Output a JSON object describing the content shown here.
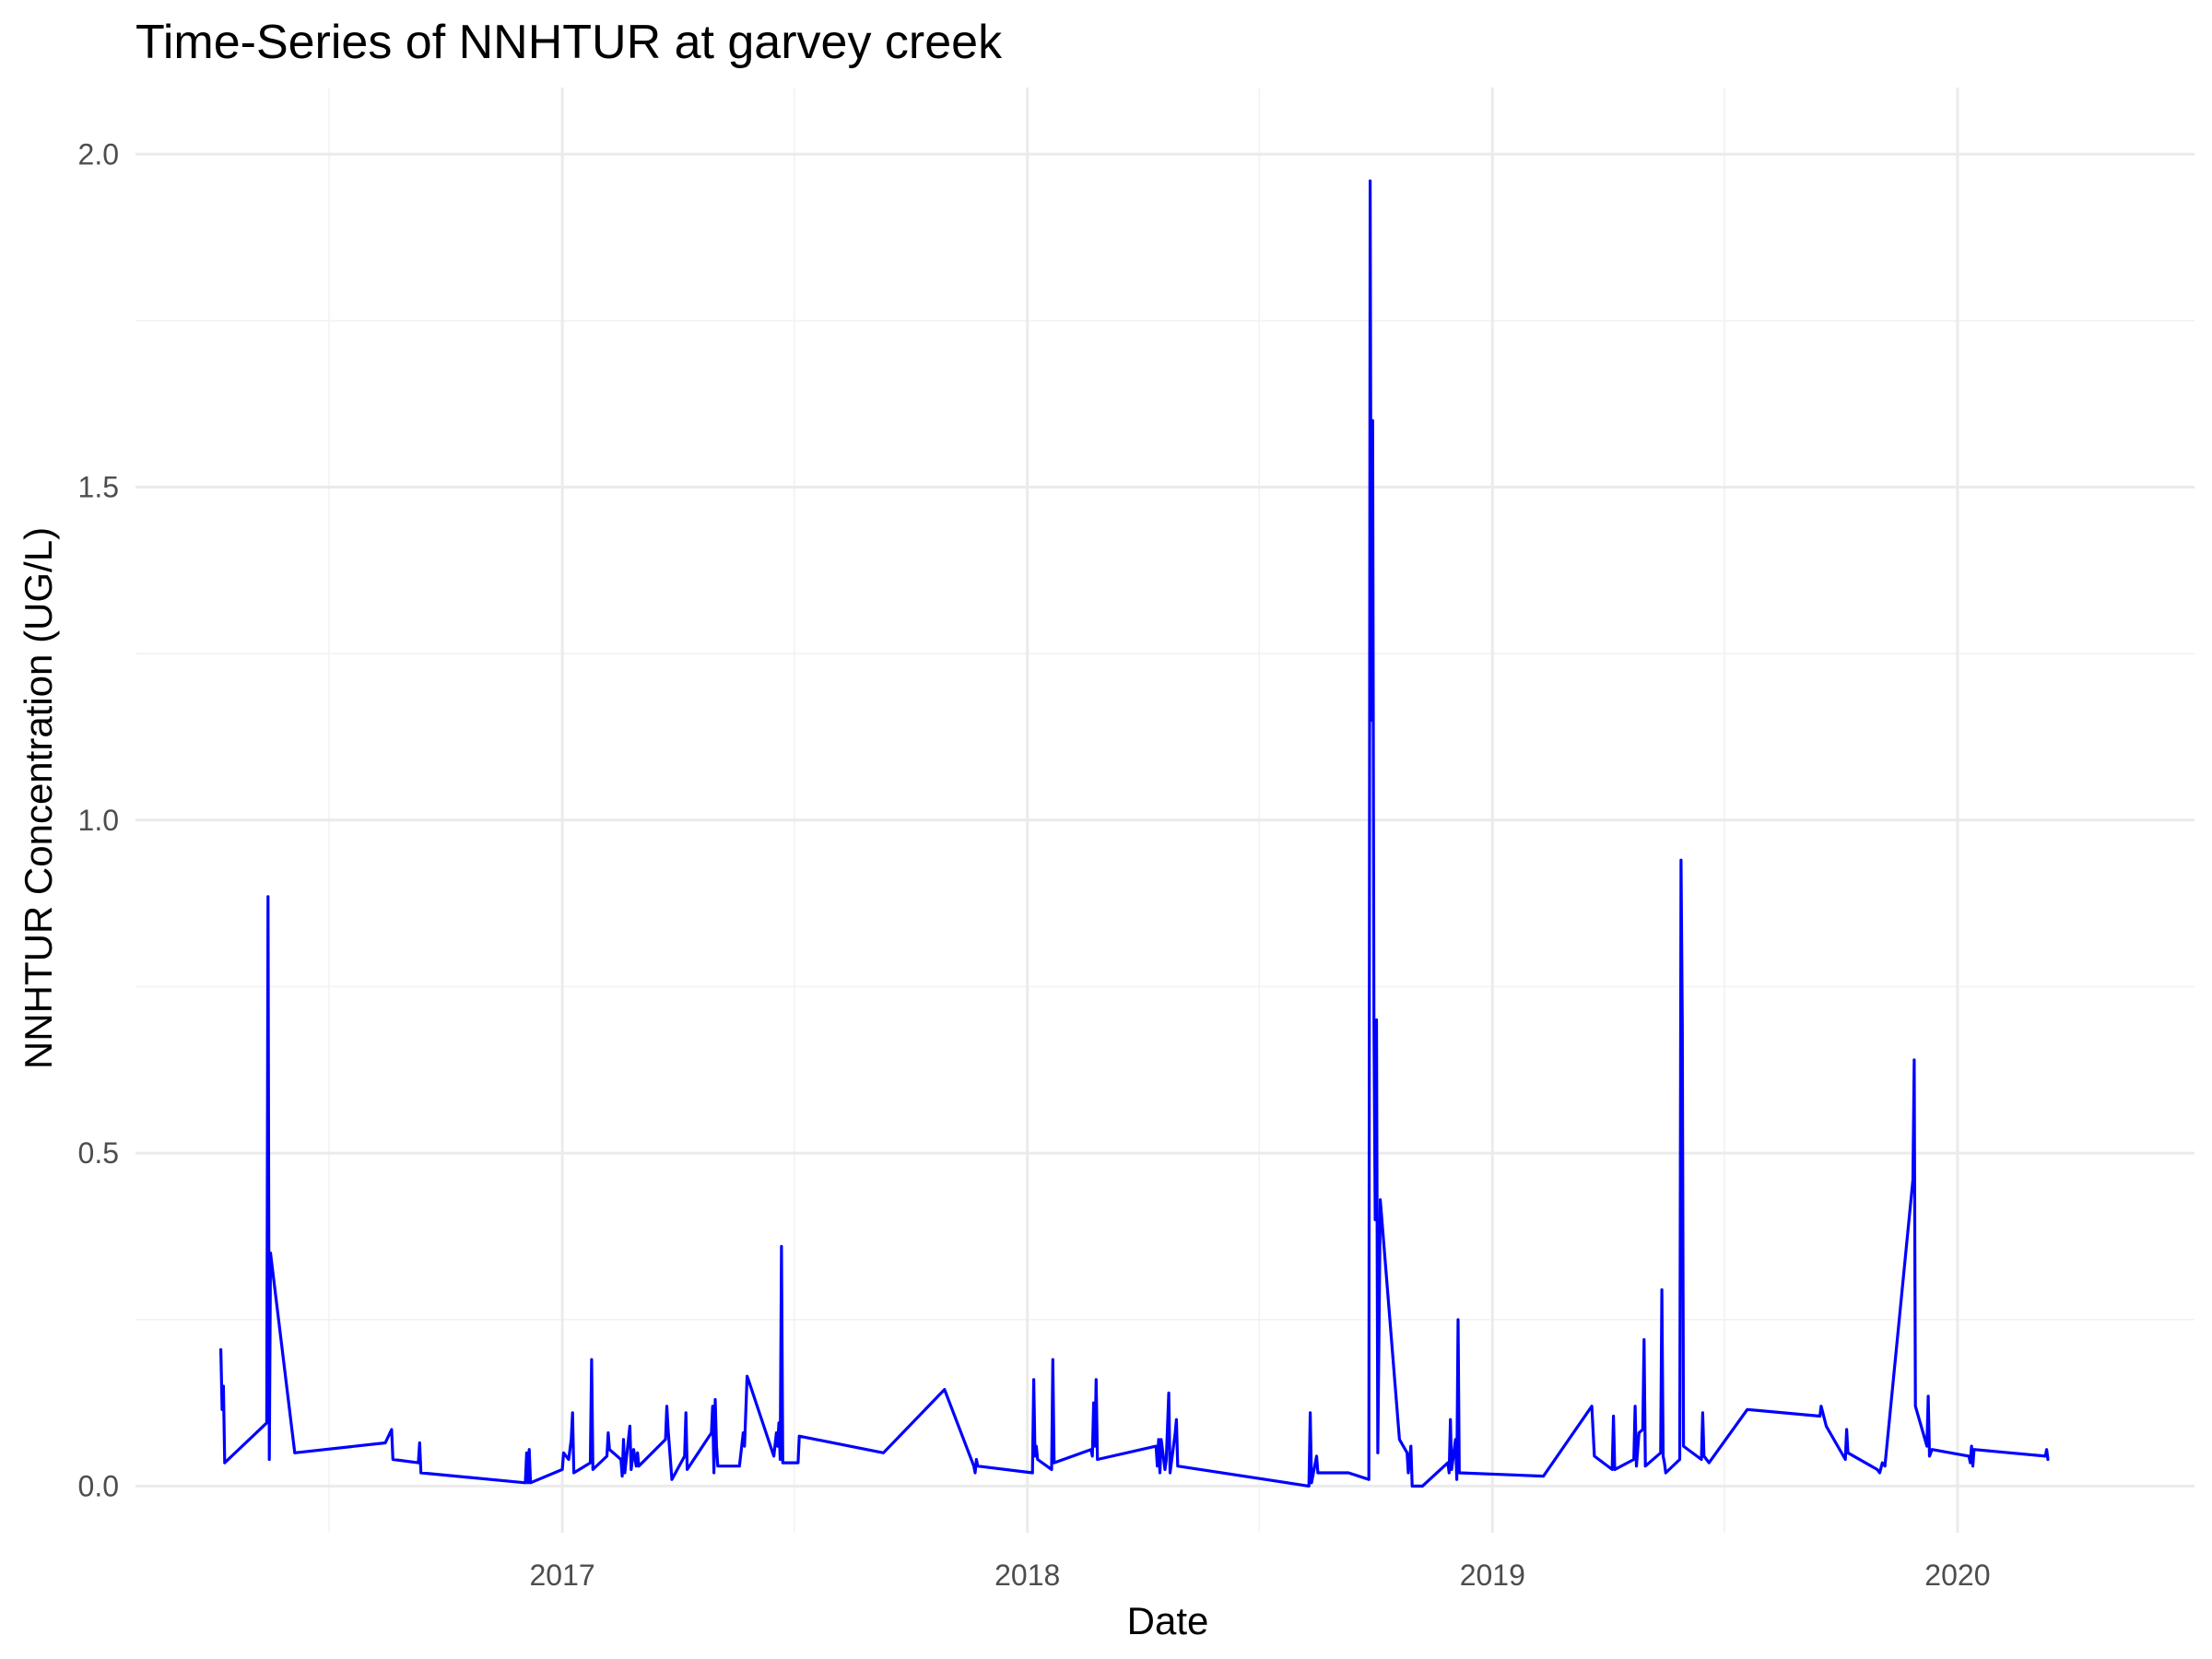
{
  "chart_data": {
    "type": "line",
    "title": "Time-Series of NNHTUR at garvey creek",
    "xlabel": "Date",
    "ylabel": "NNHTUR Concentration (UG/L)",
    "xlim": [
      "2016-02-01",
      "2020-07-05"
    ],
    "ylim": [
      -0.07,
      2.1
    ],
    "x_ticks": [
      {
        "date": "2017-01-01",
        "label": "2017"
      },
      {
        "date": "2018-01-01",
        "label": "2018"
      },
      {
        "date": "2019-01-01",
        "label": "2019"
      },
      {
        "date": "2020-01-01",
        "label": "2020"
      }
    ],
    "x_minor_ticks": [
      "2016-07-02",
      "2017-07-02",
      "2018-07-02",
      "2019-07-02"
    ],
    "y_ticks": [
      {
        "value": 0.0,
        "label": "0.0"
      },
      {
        "value": 0.5,
        "label": "0.5"
      },
      {
        "value": 1.0,
        "label": "1.0"
      },
      {
        "value": 1.5,
        "label": "1.5"
      },
      {
        "value": 2.0,
        "label": "2.0"
      }
    ],
    "y_minor_ticks": [
      0.25,
      0.75,
      1.25,
      1.75
    ],
    "grid": true,
    "legend": "none",
    "series": [
      {
        "color": "#0000ff",
        "points": [
          [
            "2016-04-08",
            0.205
          ],
          [
            "2016-04-09",
            0.115
          ],
          [
            "2016-04-10",
            0.15
          ],
          [
            "2016-04-11",
            0.035
          ],
          [
            "2016-05-14",
            0.095
          ],
          [
            "2016-05-15",
            0.885
          ],
          [
            "2016-05-16",
            0.04
          ],
          [
            "2016-05-17",
            0.35
          ],
          [
            "2016-06-05",
            0.05
          ],
          [
            "2016-08-15",
            0.065
          ],
          [
            "2016-08-20",
            0.085
          ],
          [
            "2016-08-21",
            0.04
          ],
          [
            "2016-09-10",
            0.035
          ],
          [
            "2016-09-11",
            0.065
          ],
          [
            "2016-09-12",
            0.02
          ],
          [
            "2016-12-03",
            0.005
          ],
          [
            "2016-12-04",
            0.05
          ],
          [
            "2016-12-05",
            0.005
          ],
          [
            "2016-12-06",
            0.055
          ],
          [
            "2016-12-07",
            0.005
          ],
          [
            "2017-01-01",
            0.025
          ],
          [
            "2017-01-02",
            0.05
          ],
          [
            "2017-01-06",
            0.04
          ],
          [
            "2017-01-08",
            0.07
          ],
          [
            "2017-01-09",
            0.11
          ],
          [
            "2017-01-10",
            0.02
          ],
          [
            "2017-01-23",
            0.035
          ],
          [
            "2017-01-24",
            0.19
          ],
          [
            "2017-01-25",
            0.025
          ],
          [
            "2017-02-05",
            0.045
          ],
          [
            "2017-02-06",
            0.08
          ],
          [
            "2017-02-07",
            0.055
          ],
          [
            "2017-02-16",
            0.04
          ],
          [
            "2017-02-17",
            0.015
          ],
          [
            "2017-02-18",
            0.07
          ],
          [
            "2017-02-19",
            0.02
          ],
          [
            "2017-02-23",
            0.09
          ],
          [
            "2017-02-24",
            0.025
          ],
          [
            "2017-02-26",
            0.055
          ],
          [
            "2017-02-28",
            0.03
          ],
          [
            "2017-03-01",
            0.05
          ],
          [
            "2017-03-02",
            0.03
          ],
          [
            "2017-03-23",
            0.07
          ],
          [
            "2017-03-24",
            0.12
          ],
          [
            "2017-03-25",
            0.085
          ],
          [
            "2017-03-28",
            0.01
          ],
          [
            "2017-04-07",
            0.045
          ],
          [
            "2017-04-08",
            0.11
          ],
          [
            "2017-04-09",
            0.025
          ],
          [
            "2017-04-28",
            0.08
          ],
          [
            "2017-04-29",
            0.12
          ],
          [
            "2017-04-30",
            0.02
          ],
          [
            "2017-05-01",
            0.13
          ],
          [
            "2017-05-02",
            0.06
          ],
          [
            "2017-05-03",
            0.03
          ],
          [
            "2017-05-20",
            0.03
          ],
          [
            "2017-05-23",
            0.08
          ],
          [
            "2017-05-24",
            0.06
          ],
          [
            "2017-05-26",
            0.165
          ],
          [
            "2017-05-27",
            0.16
          ],
          [
            "2017-06-16",
            0.045
          ],
          [
            "2017-06-18",
            0.08
          ],
          [
            "2017-06-19",
            0.06
          ],
          [
            "2017-06-20",
            0.095
          ],
          [
            "2017-06-21",
            0.04
          ],
          [
            "2017-06-22",
            0.36
          ],
          [
            "2017-06-23",
            0.035
          ],
          [
            "2017-07-05",
            0.035
          ],
          [
            "2017-07-06",
            0.075
          ],
          [
            "2017-09-10",
            0.05
          ],
          [
            "2017-10-28",
            0.145
          ],
          [
            "2017-11-20",
            0.03
          ],
          [
            "2017-11-21",
            0.02
          ],
          [
            "2017-11-22",
            0.04
          ],
          [
            "2017-11-23",
            0.03
          ],
          [
            "2018-01-05",
            0.02
          ],
          [
            "2018-01-06",
            0.16
          ],
          [
            "2018-01-07",
            0.045
          ],
          [
            "2018-01-08",
            0.06
          ],
          [
            "2018-01-09",
            0.04
          ],
          [
            "2018-01-20",
            0.025
          ],
          [
            "2018-01-21",
            0.19
          ],
          [
            "2018-01-22",
            0.035
          ],
          [
            "2018-02-20",
            0.055
          ],
          [
            "2018-02-21",
            0.045
          ],
          [
            "2018-02-22",
            0.125
          ],
          [
            "2018-02-23",
            0.06
          ],
          [
            "2018-02-24",
            0.16
          ],
          [
            "2018-02-25",
            0.04
          ],
          [
            "2018-04-12",
            0.06
          ],
          [
            "2018-04-13",
            0.03
          ],
          [
            "2018-04-14",
            0.07
          ],
          [
            "2018-04-15",
            0.02
          ],
          [
            "2018-04-16",
            0.07
          ],
          [
            "2018-04-19",
            0.025
          ],
          [
            "2018-04-20",
            0.04
          ],
          [
            "2018-04-22",
            0.14
          ],
          [
            "2018-04-23",
            0.02
          ],
          [
            "2018-04-27",
            0.08
          ],
          [
            "2018-04-28",
            0.1
          ],
          [
            "2018-04-29",
            0.03
          ],
          [
            "2018-08-10",
            0.0
          ],
          [
            "2018-08-11",
            0.11
          ],
          [
            "2018-08-12",
            0.005
          ],
          [
            "2018-08-16",
            0.045
          ],
          [
            "2018-08-17",
            0.02
          ],
          [
            "2018-09-10",
            0.02
          ],
          [
            "2018-09-26",
            0.01
          ],
          [
            "2018-09-27",
            1.96
          ],
          [
            "2018-09-28",
            1.15
          ],
          [
            "2018-09-29",
            1.6
          ],
          [
            "2018-09-30",
            0.7
          ],
          [
            "2018-10-01",
            0.4
          ],
          [
            "2018-10-02",
            0.7
          ],
          [
            "2018-10-03",
            0.05
          ],
          [
            "2018-10-05",
            0.43
          ],
          [
            "2018-10-20",
            0.07
          ],
          [
            "2018-10-26",
            0.05
          ],
          [
            "2018-10-27",
            0.02
          ],
          [
            "2018-10-29",
            0.06
          ],
          [
            "2018-10-30",
            0.0
          ],
          [
            "2018-11-07",
            0.0
          ],
          [
            "2018-11-27",
            0.035
          ],
          [
            "2018-11-28",
            0.02
          ],
          [
            "2018-11-29",
            0.1
          ],
          [
            "2018-11-30",
            0.025
          ],
          [
            "2018-12-03",
            0.07
          ],
          [
            "2018-12-04",
            0.01
          ],
          [
            "2018-12-05",
            0.25
          ],
          [
            "2018-12-06",
            0.02
          ],
          [
            "2019-02-10",
            0.015
          ],
          [
            "2019-03-20",
            0.12
          ],
          [
            "2019-03-22",
            0.045
          ],
          [
            "2019-04-05",
            0.025
          ],
          [
            "2019-04-06",
            0.105
          ],
          [
            "2019-04-07",
            0.025
          ],
          [
            "2019-04-22",
            0.04
          ],
          [
            "2019-04-23",
            0.12
          ],
          [
            "2019-04-24",
            0.03
          ],
          [
            "2019-04-26",
            0.08
          ],
          [
            "2019-04-29",
            0.085
          ],
          [
            "2019-04-30",
            0.22
          ],
          [
            "2019-05-01",
            0.03
          ],
          [
            "2019-05-13",
            0.05
          ],
          [
            "2019-05-14",
            0.295
          ],
          [
            "2019-05-15",
            0.045
          ],
          [
            "2019-05-16",
            0.035
          ],
          [
            "2019-05-17",
            0.02
          ],
          [
            "2019-05-28",
            0.04
          ],
          [
            "2019-05-29",
            0.94
          ],
          [
            "2019-05-30",
            0.69
          ],
          [
            "2019-05-31",
            0.06
          ],
          [
            "2019-06-14",
            0.04
          ],
          [
            "2019-06-15",
            0.11
          ],
          [
            "2019-06-16",
            0.045
          ],
          [
            "2019-06-20",
            0.035
          ],
          [
            "2019-07-20",
            0.115
          ],
          [
            "2019-09-15",
            0.105
          ],
          [
            "2019-09-16",
            0.12
          ],
          [
            "2019-09-20",
            0.09
          ],
          [
            "2019-10-05",
            0.04
          ],
          [
            "2019-10-06",
            0.085
          ],
          [
            "2019-10-07",
            0.05
          ],
          [
            "2019-10-30",
            0.025
          ],
          [
            "2019-11-01",
            0.02
          ],
          [
            "2019-11-03",
            0.035
          ],
          [
            "2019-11-05",
            0.03
          ],
          [
            "2019-11-27",
            0.46
          ],
          [
            "2019-11-28",
            0.64
          ],
          [
            "2019-11-29",
            0.12
          ],
          [
            "2019-12-08",
            0.06
          ],
          [
            "2019-12-09",
            0.135
          ],
          [
            "2019-12-10",
            0.045
          ],
          [
            "2019-12-12",
            0.055
          ],
          [
            "2020-01-10",
            0.045
          ],
          [
            "2020-01-11",
            0.035
          ],
          [
            "2020-01-12",
            0.06
          ],
          [
            "2020-01-13",
            0.03
          ],
          [
            "2020-01-14",
            0.055
          ],
          [
            "2020-03-10",
            0.045
          ],
          [
            "2020-03-11",
            0.055
          ],
          [
            "2020-03-12",
            0.04
          ]
        ]
      }
    ]
  }
}
